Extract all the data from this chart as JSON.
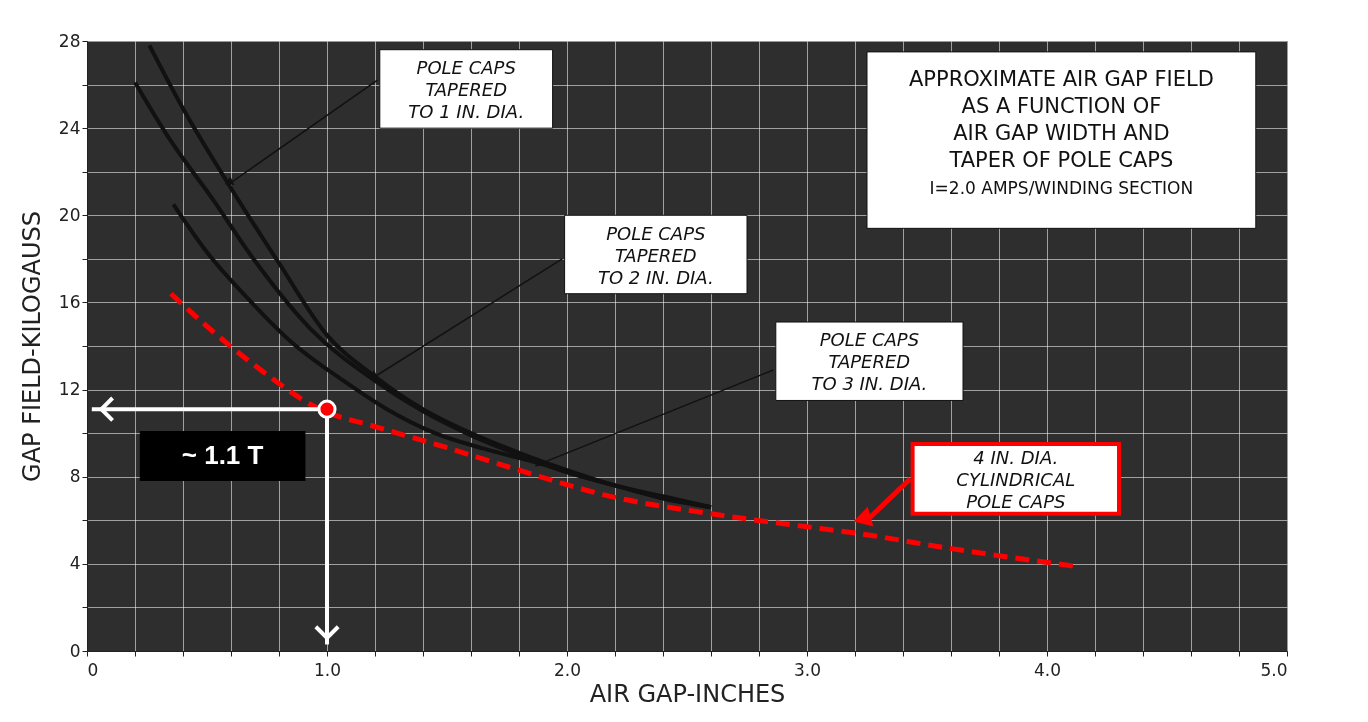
{
  "chart_data": {
    "type": "line",
    "title": "APPROXIMATE AIR GAP FIELD\nAS A FUNCTION OF\nAIR GAP WIDTH AND\nTAPER OF POLE CAPS",
    "subtitle": "I=2.0 AMPS/WINDING SECTION",
    "xlabel": "AIR GAP-INCHES",
    "ylabel": "GAP FIELD-KILOGAUSS",
    "xlim": [
      0,
      5
    ],
    "ylim": [
      0,
      28
    ],
    "xticks": [
      0,
      {
        "value": 0.2,
        "label": null
      },
      {
        "value": 0.4,
        "label": null
      },
      {
        "value": 0.6,
        "label": null
      },
      {
        "value": 0.8,
        "label": null
      },
      {
        "value": 1,
        "label": "1.0"
      },
      {
        "value": 1.2,
        "label": null
      },
      {
        "value": 1.4,
        "label": null
      },
      {
        "value": 1.6,
        "label": null
      },
      {
        "value": 1.8,
        "label": null
      },
      {
        "value": 2,
        "label": "2.0"
      },
      {
        "value": 2.2,
        "label": null
      },
      {
        "value": 2.4,
        "label": null
      },
      {
        "value": 2.6,
        "label": null
      },
      {
        "value": 2.8,
        "label": null
      },
      {
        "value": 3,
        "label": "3.0"
      },
      {
        "value": 3.2,
        "label": null
      },
      {
        "value": 3.4,
        "label": null
      },
      {
        "value": 3.6,
        "label": null
      },
      {
        "value": 3.8,
        "label": null
      },
      {
        "value": 4,
        "label": "4.0"
      },
      {
        "value": 4.2,
        "label": null
      },
      {
        "value": 4.4,
        "label": null
      },
      {
        "value": 4.6,
        "label": null
      },
      {
        "value": 4.8,
        "label": null
      },
      {
        "value": 5,
        "label": "5.0"
      }
    ],
    "yticks": [
      0,
      {
        "value": 2,
        "label": null
      },
      4,
      {
        "value": 6,
        "label": null
      },
      8,
      {
        "value": 10,
        "label": null
      },
      12,
      {
        "value": 14,
        "label": null
      },
      16,
      {
        "value": 18,
        "label": null
      },
      20,
      {
        "value": 22,
        "label": null
      },
      24,
      {
        "value": 26,
        "label": null
      },
      28
    ],
    "grid": true,
    "marker": "none",
    "series": [
      {
        "color": "#111111",
        "line_style": "solid",
        "x": [
          0.26,
          0.4,
          0.58,
          0.8,
          1.0,
          1.2,
          1.4,
          1.6,
          1.8,
          2.0,
          2.2,
          2.4,
          2.6
        ],
        "values": [
          27.8,
          24.9,
          21.6,
          17.8,
          14.5,
          12.6,
          11.1,
          10.0,
          9.1,
          8.3,
          7.6,
          7.1,
          6.6
        ]
      },
      {
        "color": "#111111",
        "line_style": "solid",
        "x": [
          0.2,
          0.35,
          0.52,
          0.7,
          0.93,
          1.2,
          1.4,
          1.6,
          1.8,
          2.0,
          2.2,
          2.4,
          2.6
        ],
        "values": [
          26.1,
          23.4,
          20.8,
          17.9,
          14.8,
          12.4,
          11.0,
          9.9,
          9.0,
          8.2,
          7.6,
          7.0,
          6.6
        ]
      },
      {
        "color": "#111111",
        "line_style": "solid",
        "x": [
          0.36,
          0.5,
          0.66,
          0.85,
          1.07,
          1.25,
          1.45,
          1.65,
          1.89,
          2.1,
          2.3,
          2.6
        ],
        "values": [
          20.5,
          18.3,
          16.3,
          14.2,
          12.4,
          11.1,
          10.0,
          9.3,
          8.6,
          7.9,
          7.3,
          6.6
        ]
      },
      {
        "color": "#ff0000",
        "line_style": "dashed",
        "x": [
          0.35,
          0.5,
          0.7,
          0.97,
          1.2,
          1.45,
          1.8,
          2.18,
          2.6,
          3.0,
          3.21,
          3.6,
          4.11
        ],
        "values": [
          16.4,
          14.9,
          13.1,
          11.1,
          10.3,
          9.5,
          8.3,
          7.1,
          6.3,
          5.7,
          5.4,
          4.7,
          3.9
        ]
      }
    ],
    "annotations": [
      "POLE CAPS\nTAPERED\nTO 1 IN. DIA.",
      "POLE CAPS\nTAPERED\nTO 2 IN. DIA.",
      "POLE CAPS\nTAPERED\nTO 3 IN. DIA.",
      "4 IN. DIA.\nCYLINDRICAL\nPOLE CAPS",
      {
        "text": "~ 1.1 T",
        "x": 1.0,
        "y": 11.1
      }
    ]
  }
}
